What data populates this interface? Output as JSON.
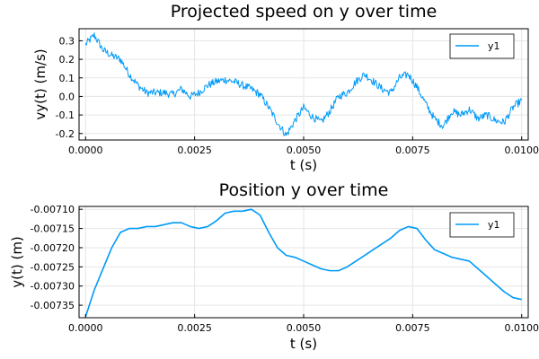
{
  "chart_data": [
    {
      "type": "line",
      "title": "Projected speed on y over time",
      "xlabel": "t (s)",
      "ylabel": "vy(t) (m/s)",
      "xlim": [
        -0.00015,
        0.01015
      ],
      "ylim": [
        -0.235,
        0.365
      ],
      "xticks": [
        0.0,
        0.0025,
        0.005,
        0.0075,
        0.01
      ],
      "xtick_labels": [
        "0.0000",
        "0.0025",
        "0.0050",
        "0.0075",
        "0.0100"
      ],
      "yticks": [
        -0.2,
        -0.1,
        0.0,
        0.1,
        0.2,
        0.3
      ],
      "ytick_labels": [
        "-0.2",
        "-0.1",
        "0.0",
        "0.1",
        "0.2",
        "0.3"
      ],
      "grid": true,
      "legend": "top-right",
      "noisy": true,
      "series": [
        {
          "name": "y1",
          "color": "#009af9",
          "x": [
            0.0,
            0.0002,
            0.0004,
            0.0006,
            0.0008,
            0.001,
            0.0012,
            0.0014,
            0.0016,
            0.0018,
            0.002,
            0.0022,
            0.0024,
            0.0026,
            0.0028,
            0.003,
            0.0032,
            0.0034,
            0.0036,
            0.0038,
            0.004,
            0.0042,
            0.0044,
            0.0046,
            0.0048,
            0.005,
            0.0052,
            0.0054,
            0.0056,
            0.0058,
            0.006,
            0.0062,
            0.0064,
            0.0066,
            0.0068,
            0.007,
            0.0072,
            0.0074,
            0.0076,
            0.0078,
            0.008,
            0.0082,
            0.0084,
            0.0086,
            0.0088,
            0.009,
            0.0092,
            0.0094,
            0.0096,
            0.0098,
            0.01
          ],
          "y": [
            0.28,
            0.33,
            0.25,
            0.22,
            0.2,
            0.12,
            0.06,
            0.02,
            0.02,
            0.02,
            0.01,
            0.04,
            0.0,
            0.02,
            0.06,
            0.08,
            0.09,
            0.08,
            0.06,
            0.04,
            0.01,
            -0.06,
            -0.14,
            -0.21,
            -0.13,
            -0.06,
            -0.11,
            -0.14,
            -0.08,
            0.0,
            0.02,
            0.08,
            0.12,
            0.08,
            0.04,
            0.02,
            0.1,
            0.12,
            0.05,
            -0.04,
            -0.12,
            -0.16,
            -0.08,
            -0.1,
            -0.07,
            -0.12,
            -0.1,
            -0.13,
            -0.14,
            -0.06,
            -0.02
          ]
        }
      ]
    },
    {
      "type": "line",
      "title": "Position y over time",
      "xlabel": "t (s)",
      "ylabel": "y(t) (m)",
      "xlim": [
        -0.00015,
        0.01015
      ],
      "ylim": [
        -0.0073825,
        -0.0070925
      ],
      "xticks": [
        0.0,
        0.0025,
        0.005,
        0.0075,
        0.01
      ],
      "xtick_labels": [
        "0.0000",
        "0.0025",
        "0.0050",
        "0.0075",
        "0.0100"
      ],
      "yticks": [
        -0.00735,
        -0.0073,
        -0.00725,
        -0.0072,
        -0.00715,
        -0.0071
      ],
      "ytick_labels": [
        "-0.00735",
        "-0.00730",
        "-0.00725",
        "-0.00720",
        "-0.00715",
        "-0.00710"
      ],
      "grid": true,
      "legend": "top-right",
      "noisy": false,
      "series": [
        {
          "name": "y1",
          "color": "#009af9",
          "x": [
            0.0,
            0.0002,
            0.0004,
            0.0006,
            0.0008,
            0.001,
            0.0012,
            0.0014,
            0.0016,
            0.0018,
            0.002,
            0.0022,
            0.0024,
            0.0026,
            0.0028,
            0.003,
            0.0032,
            0.0034,
            0.0036,
            0.0038,
            0.004,
            0.0042,
            0.0044,
            0.0046,
            0.0048,
            0.005,
            0.0052,
            0.0054,
            0.0056,
            0.0058,
            0.006,
            0.0062,
            0.0064,
            0.0066,
            0.0068,
            0.007,
            0.0072,
            0.0074,
            0.0076,
            0.0078,
            0.008,
            0.0082,
            0.0084,
            0.0086,
            0.0088,
            0.009,
            0.0092,
            0.0094,
            0.0096,
            0.0098,
            0.01
          ],
          "y": [
            -0.00738,
            -0.00731,
            -0.007255,
            -0.0072,
            -0.00716,
            -0.00715,
            -0.00715,
            -0.007145,
            -0.007145,
            -0.00714,
            -0.007135,
            -0.007135,
            -0.007145,
            -0.00715,
            -0.007145,
            -0.00713,
            -0.00711,
            -0.007105,
            -0.007105,
            -0.0071,
            -0.007115,
            -0.00716,
            -0.0072,
            -0.00722,
            -0.007225,
            -0.007235,
            -0.007245,
            -0.007255,
            -0.00726,
            -0.00726,
            -0.00725,
            -0.007235,
            -0.00722,
            -0.007205,
            -0.00719,
            -0.007175,
            -0.007155,
            -0.007145,
            -0.00715,
            -0.00718,
            -0.007205,
            -0.007215,
            -0.007225,
            -0.00723,
            -0.007235,
            -0.007255,
            -0.007275,
            -0.007295,
            -0.007315,
            -0.00733,
            -0.007335
          ]
        }
      ]
    }
  ]
}
